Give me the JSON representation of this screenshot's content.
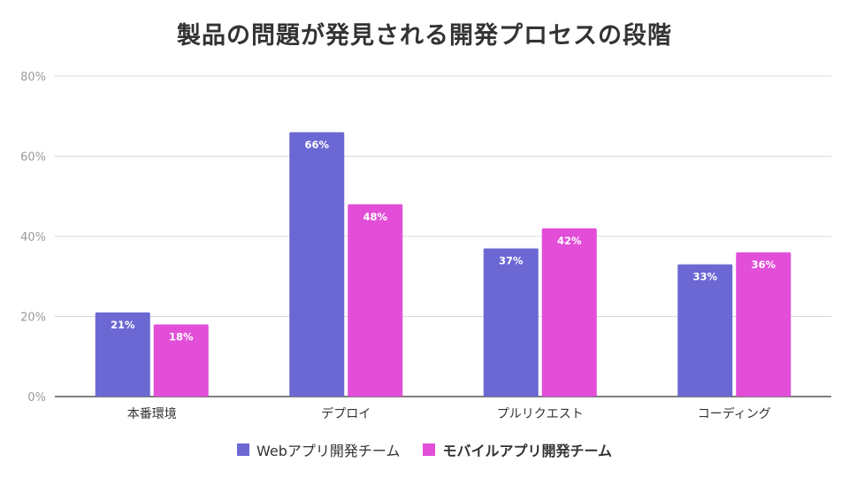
{
  "chart_data": {
    "type": "bar",
    "title": "製品の問題が発見される開発プロセスの段階",
    "categories": [
      "本番環境",
      "デプロイ",
      "プルリクエスト",
      "コーディング"
    ],
    "ylim": [
      0,
      80
    ],
    "yticks": [
      "0%",
      "20%",
      "40%",
      "60%",
      "80%"
    ],
    "ytick_values": [
      0,
      20,
      40,
      60,
      80
    ],
    "grid": true,
    "legend_position": "bottom",
    "series": [
      {
        "name": "Webアプリ開発チーム",
        "color": "#6b68d4",
        "values": [
          21,
          66,
          37,
          33
        ],
        "labels": [
          "21%",
          "66%",
          "37%",
          "33%"
        ]
      },
      {
        "name": "モバイルアプリ開発チーム",
        "color": "#e24ed8",
        "values": [
          18,
          48,
          42,
          36
        ],
        "labels": [
          "18%",
          "48%",
          "42%",
          "36%"
        ]
      }
    ]
  }
}
